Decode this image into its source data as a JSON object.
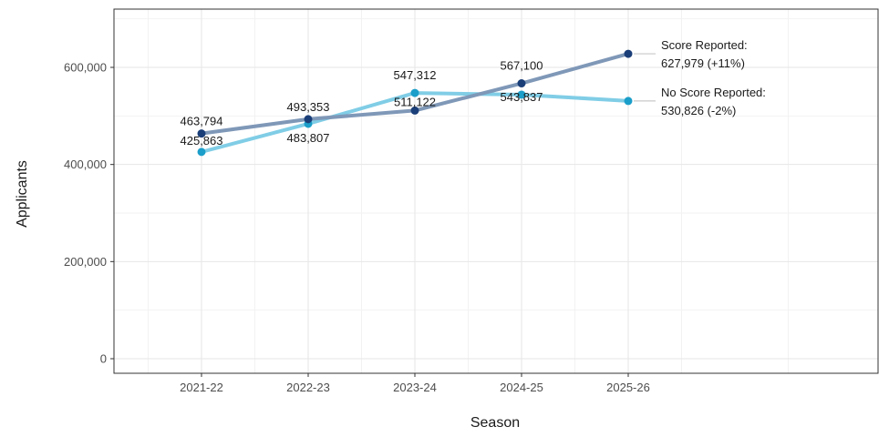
{
  "chart_data": {
    "type": "line",
    "xlabel": "Season",
    "ylabel": "Applicants",
    "categories": [
      "2021-22",
      "2022-23",
      "2023-24",
      "2024-25",
      "2025-26"
    ],
    "ylim": [
      -30000,
      720000
    ],
    "yticks": [
      0,
      200000,
      400000,
      600000
    ],
    "ytick_labels": [
      "0",
      "200,000",
      "400,000",
      "600,000"
    ],
    "grid": true,
    "series": [
      {
        "key": "score",
        "values": [
          463794,
          493353,
          511122,
          567100,
          627979
        ],
        "labels": [
          "463,794",
          "493,353",
          "511,122",
          "567,100",
          "627,979"
        ],
        "line_color": "#7f98b8",
        "point_color": "#1a3e78",
        "end_label_line1": "Score Reported:",
        "end_label_line2": "627,979 (+11%)"
      },
      {
        "key": "noscore",
        "values": [
          425863,
          483807,
          547312,
          543837,
          530826
        ],
        "labels": [
          "425,863",
          "483,807",
          "547,312",
          "543,837",
          "530,826"
        ],
        "line_color": "#80cde6",
        "point_color": "#1b9ec9",
        "end_label_line1": "No Score Reported:",
        "end_label_line2": "530,826 (-2%)"
      }
    ]
  }
}
